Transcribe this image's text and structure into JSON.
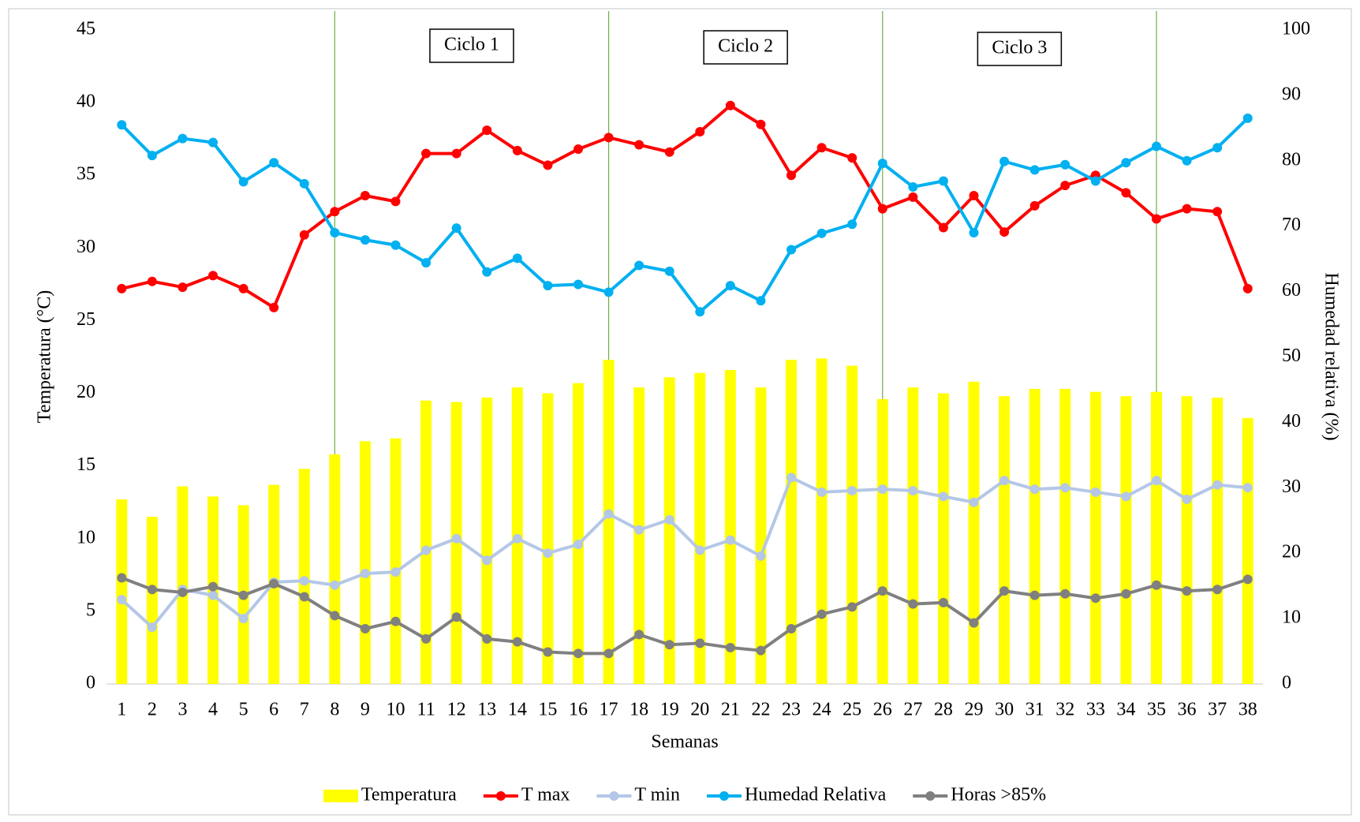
{
  "chart_data": {
    "type": "bar",
    "x_label": "Semanas",
    "y_label": "Temperatura (°C)",
    "y2_label": "Humedad relativa (%)",
    "categories": [
      "1",
      "2",
      "3",
      "4",
      "5",
      "6",
      "7",
      "8",
      "9",
      "10",
      "11",
      "12",
      "13",
      "14",
      "15",
      "16",
      "17",
      "18",
      "19",
      "20",
      "21",
      "22",
      "23",
      "24",
      "25",
      "26",
      "27",
      "28",
      "29",
      "30",
      "31",
      "32",
      "33",
      "34",
      "35",
      "36",
      "37",
      "38"
    ],
    "ylim": [
      0,
      45
    ],
    "yticks": [
      0,
      5,
      10,
      15,
      20,
      25,
      30,
      35,
      40,
      45
    ],
    "y2lim": [
      0,
      100
    ],
    "y2ticks": [
      0,
      10,
      20,
      30,
      40,
      50,
      60,
      70,
      80,
      90,
      100
    ],
    "dividers": [
      "8",
      "17",
      "26",
      "35"
    ],
    "annotations": [
      "Ciclo 1",
      "Ciclo 2",
      "Ciclo 3"
    ],
    "legend": "bottom",
    "series": [
      {
        "name": "Temperatura",
        "type": "bar",
        "color": "#ffff00",
        "values": [
          12.7,
          11.5,
          13.6,
          12.9,
          12.3,
          13.7,
          14.8,
          15.8,
          16.7,
          16.9,
          19.5,
          19.4,
          19.7,
          20.4,
          20.0,
          20.7,
          22.3,
          20.4,
          21.1,
          21.4,
          21.6,
          20.4,
          22.3,
          22.4,
          21.9,
          19.6,
          20.4,
          20.0,
          20.8,
          19.8,
          20.3,
          20.3,
          20.1,
          19.8,
          20.1,
          19.8,
          19.7,
          18.3
        ]
      },
      {
        "name": "T max",
        "type": "line",
        "color": "#ff0000",
        "values": [
          27.2,
          27.7,
          27.3,
          28.1,
          27.2,
          25.9,
          30.9,
          32.5,
          33.6,
          33.2,
          36.5,
          36.5,
          38.1,
          36.7,
          35.7,
          36.8,
          37.6,
          37.1,
          36.6,
          38.0,
          39.8,
          38.5,
          35.0,
          36.9,
          36.2,
          32.7,
          33.5,
          31.4,
          33.6,
          31.1,
          32.9,
          34.3,
          35.0,
          33.8,
          32.0,
          32.7,
          32.5,
          27.2
        ]
      },
      {
        "name": "T min",
        "type": "line",
        "color": "#b4c7e7",
        "values": [
          5.8,
          3.9,
          6.5,
          6.1,
          4.5,
          7.0,
          7.1,
          6.8,
          7.6,
          7.7,
          9.2,
          10.0,
          8.5,
          10.0,
          9.0,
          9.6,
          11.7,
          10.6,
          11.3,
          9.2,
          9.9,
          8.8,
          14.2,
          13.2,
          13.3,
          13.4,
          13.3,
          12.9,
          12.5,
          14.0,
          13.4,
          13.5,
          13.2,
          12.9,
          14.0,
          12.7,
          13.7,
          13.5
        ]
      },
      {
        "name": "Humedad Relativa",
        "type": "line",
        "axis": "y2",
        "color": "#00b0f0",
        "values": [
          85.5,
          80.8,
          83.4,
          82.8,
          76.8,
          79.7,
          76.5,
          69.0,
          67.9,
          67.1,
          64.4,
          69.7,
          63.0,
          65.1,
          60.9,
          61.1,
          59.9,
          64.0,
          63.1,
          56.9,
          60.9,
          58.6,
          66.4,
          68.9,
          70.3,
          79.6,
          76.0,
          76.9,
          69.0,
          79.9,
          78.6,
          79.4,
          76.9,
          79.7,
          82.2,
          80.0,
          82.0,
          86.5
        ]
      },
      {
        "name": "Horas >85%",
        "type": "line",
        "color": "#808080",
        "values": [
          7.3,
          6.5,
          6.3,
          6.7,
          6.1,
          6.9,
          6.0,
          4.7,
          3.8,
          4.3,
          3.1,
          4.6,
          3.1,
          2.9,
          2.2,
          2.1,
          2.1,
          3.4,
          2.7,
          2.8,
          2.5,
          2.3,
          3.8,
          4.8,
          5.3,
          6.4,
          5.5,
          5.6,
          4.2,
          6.4,
          6.1,
          6.2,
          5.9,
          6.2,
          6.8,
          6.4,
          6.5,
          7.2
        ]
      }
    ]
  }
}
